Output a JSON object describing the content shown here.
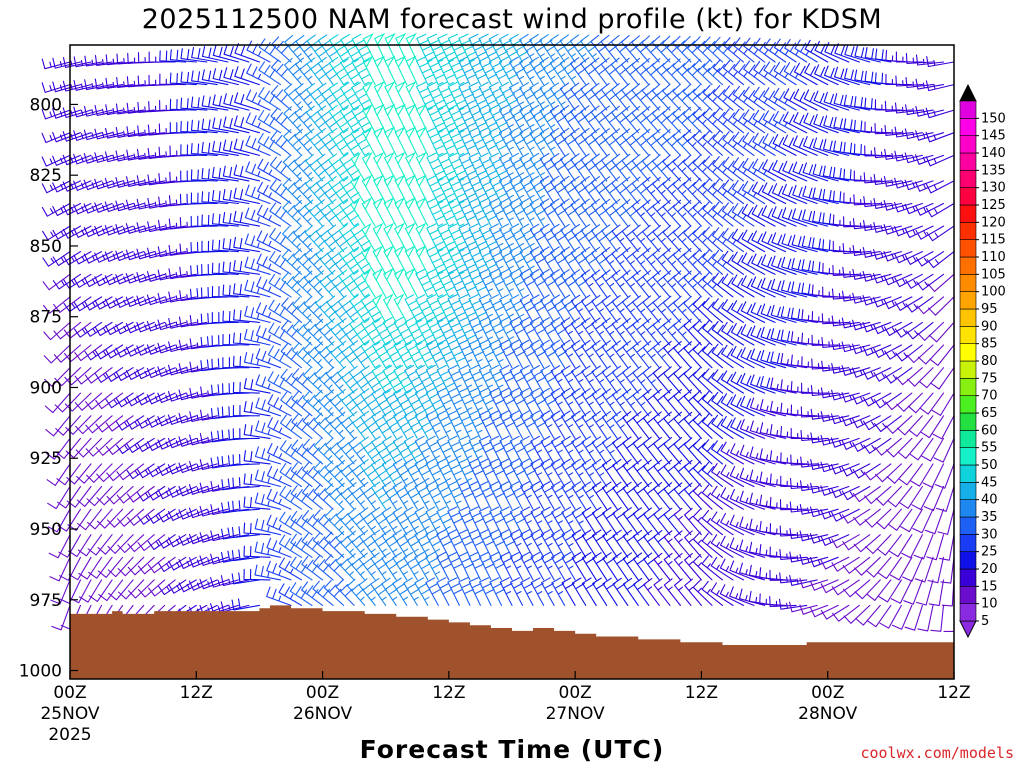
{
  "chart_data": {
    "type": "wind-barb time-height cross section",
    "title": "2025112500 NAM forecast wind profile (kt) for KDSM",
    "xlabel": "Forecast Time (UTC)",
    "credit": "coolwx.com/models",
    "x_ticks": [
      {
        "hour": 0,
        "label": "00Z",
        "date": "25NOV",
        "year": "2025"
      },
      {
        "hour": 12,
        "label": "12Z",
        "date": "",
        "year": ""
      },
      {
        "hour": 24,
        "label": "00Z",
        "date": "26NOV",
        "year": ""
      },
      {
        "hour": 36,
        "label": "12Z",
        "date": "",
        "year": ""
      },
      {
        "hour": 48,
        "label": "00Z",
        "date": "27NOV",
        "year": ""
      },
      {
        "hour": 60,
        "label": "12Z",
        "date": "",
        "year": ""
      },
      {
        "hour": 72,
        "label": "00Z",
        "date": "28NOV",
        "year": ""
      },
      {
        "hour": 84,
        "label": "12Z",
        "date": "",
        "year": ""
      }
    ],
    "xlim_hours": [
      0,
      84
    ],
    "y_ticks": [
      800,
      825,
      850,
      875,
      900,
      925,
      950,
      975,
      1000
    ],
    "ylim_hpa": [
      779,
      1003
    ],
    "y_inverted": true,
    "barb_levels_hpa": [
      785,
      793,
      802,
      810,
      818,
      827,
      835,
      843,
      852,
      860,
      868,
      877,
      885,
      893,
      902,
      910,
      918,
      927,
      935,
      943,
      952,
      960,
      968,
      977
    ],
    "barb_hours": [
      0,
      1,
      2,
      3,
      4,
      5,
      6,
      7,
      8,
      9,
      10,
      11,
      12,
      13,
      14,
      15,
      16,
      17,
      18,
      19,
      20,
      21,
      22,
      23,
      24,
      25,
      26,
      27,
      28,
      29,
      30,
      31,
      32,
      33,
      34,
      35,
      36,
      37,
      38,
      39,
      40,
      41,
      42,
      43,
      44,
      45,
      46,
      47,
      48,
      49,
      50,
      51,
      52,
      53,
      54,
      55,
      56,
      57,
      58,
      59,
      60,
      61,
      62,
      63,
      64,
      65,
      66,
      67,
      68,
      69,
      70,
      71,
      72,
      73,
      74,
      75,
      76,
      77,
      78,
      79,
      80,
      81,
      82,
      83,
      84
    ],
    "wind_model": {
      "description": "Wind direction (deg, from) and speed (kt) estimated from barbs",
      "keyframes": [
        {
          "hour": 0,
          "dir_low": 200,
          "dir_high": 255,
          "spd_low": 8,
          "spd_high": 15
        },
        {
          "hour": 10,
          "dir_low": 230,
          "dir_high": 270,
          "spd_low": 12,
          "spd_high": 17
        },
        {
          "hour": 18,
          "dir_low": 260,
          "dir_high": 290,
          "spd_low": 18,
          "spd_high": 22
        },
        {
          "hour": 22,
          "dir_low": 300,
          "dir_high": 320,
          "spd_low": 27,
          "spd_high": 35
        },
        {
          "hour": 30,
          "dir_low": 325,
          "dir_high": 335,
          "spd_low": 35,
          "spd_high": 50
        },
        {
          "hour": 38,
          "dir_low": 335,
          "dir_high": 335,
          "spd_low": 30,
          "spd_high": 42
        },
        {
          "hour": 48,
          "dir_low": 330,
          "dir_high": 325,
          "spd_low": 22,
          "spd_high": 33
        },
        {
          "hour": 60,
          "dir_low": 320,
          "dir_high": 315,
          "spd_low": 15,
          "spd_high": 30
        },
        {
          "hour": 72,
          "dir_low": 250,
          "dir_high": 300,
          "spd_low": 12,
          "spd_high": 22
        },
        {
          "hour": 84,
          "dir_low": 180,
          "dir_high": 260,
          "spd_low": 8,
          "spd_high": 15
        }
      ]
    },
    "surface_pressure": [
      {
        "hour": 0,
        "hpa": 980
      },
      {
        "hour": 2,
        "hpa": 980
      },
      {
        "hour": 4,
        "hpa": 979
      },
      {
        "hour": 5,
        "hpa": 980
      },
      {
        "hour": 8,
        "hpa": 979
      },
      {
        "hour": 14,
        "hpa": 979
      },
      {
        "hour": 18,
        "hpa": 978
      },
      {
        "hour": 19,
        "hpa": 977
      },
      {
        "hour": 21,
        "hpa": 978
      },
      {
        "hour": 24,
        "hpa": 979
      },
      {
        "hour": 28,
        "hpa": 980
      },
      {
        "hour": 31,
        "hpa": 981
      },
      {
        "hour": 34,
        "hpa": 982
      },
      {
        "hour": 36,
        "hpa": 983
      },
      {
        "hour": 38,
        "hpa": 984
      },
      {
        "hour": 40,
        "hpa": 985
      },
      {
        "hour": 42,
        "hpa": 986
      },
      {
        "hour": 44,
        "hpa": 985
      },
      {
        "hour": 46,
        "hpa": 986
      },
      {
        "hour": 48,
        "hpa": 987
      },
      {
        "hour": 50,
        "hpa": 988
      },
      {
        "hour": 54,
        "hpa": 989
      },
      {
        "hour": 58,
        "hpa": 990
      },
      {
        "hour": 62,
        "hpa": 991
      },
      {
        "hour": 66,
        "hpa": 991
      },
      {
        "hour": 70,
        "hpa": 990
      },
      {
        "hour": 74,
        "hpa": 990
      },
      {
        "hour": 84,
        "hpa": 990
      }
    ],
    "surface_color": "#a0522d",
    "colorbar": {
      "min": 5,
      "max": 150,
      "step": 5,
      "labels": [
        5,
        10,
        15,
        20,
        25,
        30,
        35,
        40,
        45,
        50,
        55,
        60,
        65,
        70,
        75,
        80,
        85,
        90,
        95,
        100,
        105,
        110,
        115,
        120,
        125,
        130,
        135,
        140,
        145,
        150
      ],
      "colors": [
        "#8a2be2",
        "#6a0dcd",
        "#3a00d8",
        "#1010e8",
        "#1a3cf5",
        "#1e5ff5",
        "#1e88f0",
        "#16b0e8",
        "#10d2dd",
        "#14f0c8",
        "#10e89a",
        "#22e040",
        "#4cf020",
        "#88f010",
        "#c8f208",
        "#ffff00",
        "#ffe200",
        "#ffc400",
        "#ffa400",
        "#ff8c00",
        "#ff7000",
        "#ff5200",
        "#ff3000",
        "#ff1010",
        "#ff0040",
        "#ff0070",
        "#ff00a0",
        "#ff00c8",
        "#ff00e8",
        "#e000e0"
      ]
    }
  }
}
